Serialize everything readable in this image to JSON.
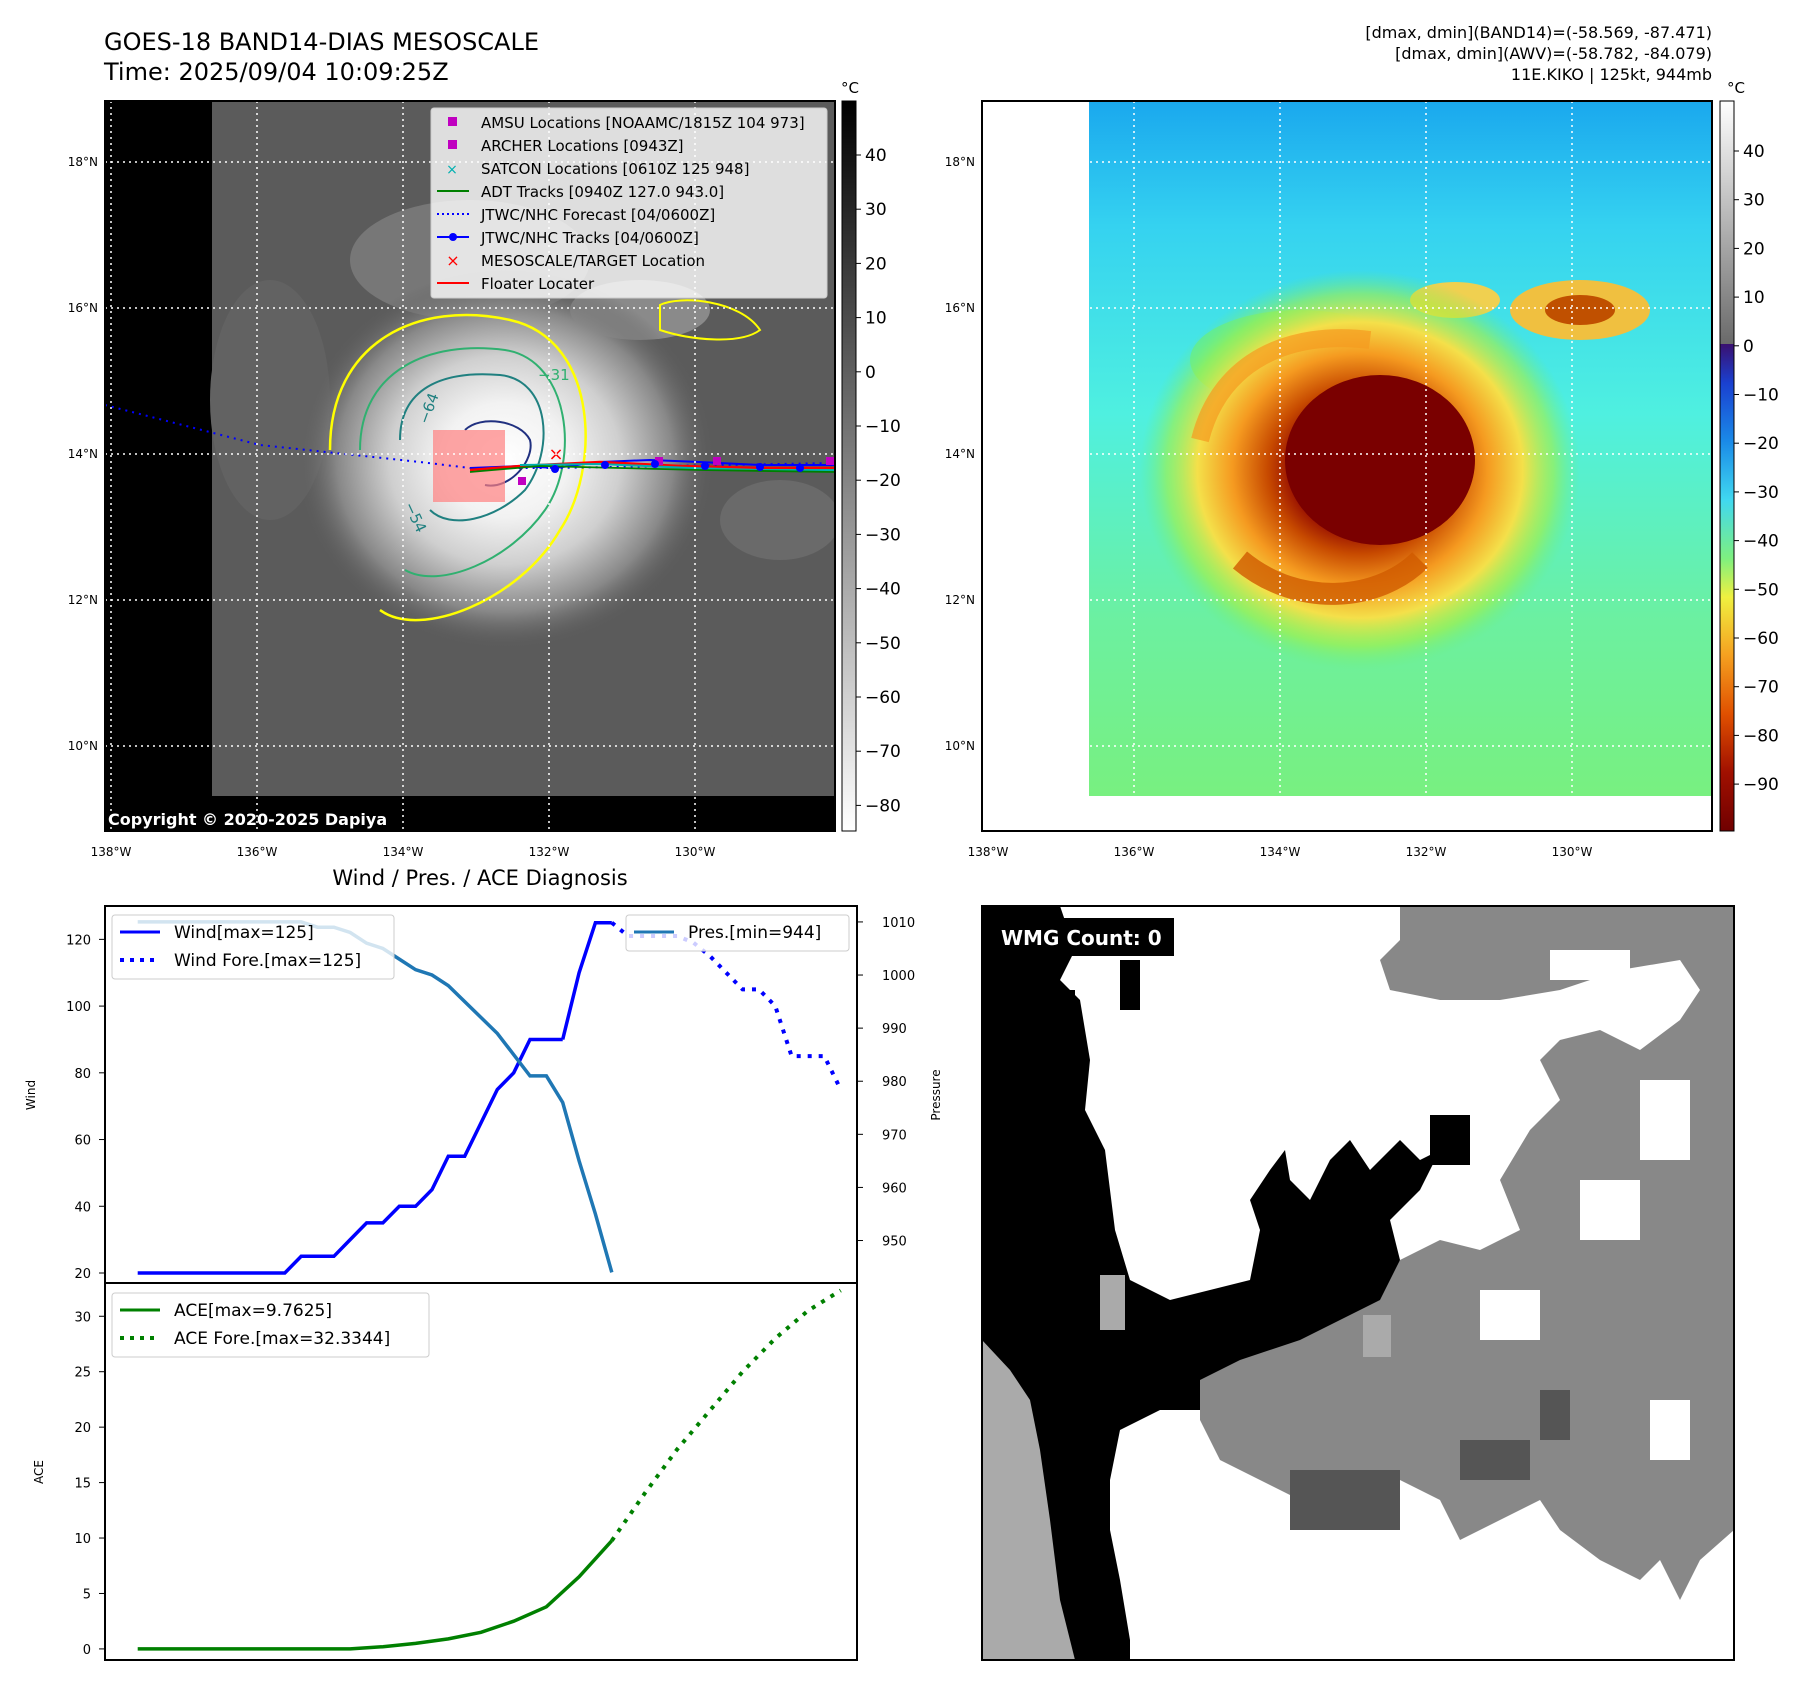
{
  "header": {
    "title_line1": "GOES-18 BAND14-DIAS MESOSCALE",
    "title_line2": "Time: 2025/09/04 10:09:25Z",
    "stats_line1": "[dmax, dmin](BAND14)=(-58.569, -87.471)",
    "stats_line2": "[dmax, dmin](AWV)=(-58.782, -84.079)",
    "stats_line3": "11E.KIKO | 125kt, 944mb"
  },
  "map_axes": {
    "lon_labels": [
      "138°W",
      "136°W",
      "134°W",
      "132°W",
      "130°W"
    ],
    "lat_labels": [
      "18°N",
      "16°N",
      "14°N",
      "12°N",
      "10°N"
    ],
    "unit": "°C"
  },
  "ir_panel": {
    "copyright": "Copyright © 2020-2025 Dapiya",
    "colorbar_ticks": [
      "40",
      "30",
      "20",
      "10",
      "0",
      "−10",
      "−20",
      "−30",
      "−40",
      "−50",
      "−60",
      "−70",
      "−80"
    ],
    "contour_labels": [
      "−64",
      "−54",
      "−31"
    ],
    "legend": [
      {
        "label": "AMSU Locations [NOAAMC/1815Z 104 973]",
        "color": "#c000c0",
        "marker": "square"
      },
      {
        "label": "ARCHER Locations [0943Z]",
        "color": "#c000c0",
        "marker": "square"
      },
      {
        "label": "SATCON Locations [0610Z 125 948]",
        "color": "#00b0b0",
        "marker": "x"
      },
      {
        "label": "ADT Tracks [0940Z 127.0 943.0]",
        "color": "#008000",
        "marker": "line"
      },
      {
        "label": "JTWC/NHC Forecast [04/0600Z]",
        "color": "#0000ff",
        "marker": "dotted"
      },
      {
        "label": "JTWC/NHC Tracks [04/0600Z]",
        "color": "#0000ff",
        "marker": "line-dot"
      },
      {
        "label": "MESOSCALE/TARGET Location",
        "color": "#ff0000",
        "marker": "x"
      },
      {
        "label": "Floater Locater",
        "color": "#ff0000",
        "marker": "line"
      }
    ]
  },
  "color_panel": {
    "colorbar_ticks": [
      "40",
      "30",
      "20",
      "10",
      "0",
      "−10",
      "−20",
      "−30",
      "−40",
      "−50",
      "−60",
      "−70",
      "−80",
      "−90"
    ]
  },
  "diagnosis": {
    "title": "Wind / Pres. / ACE Diagnosis",
    "wind_ylabel": "Wind",
    "pressure_ylabel": "Pressure",
    "ace_ylabel": "ACE",
    "wind_ticks": [
      "20",
      "40",
      "60",
      "80",
      "100",
      "120"
    ],
    "pressure_ticks": [
      "950",
      "960",
      "970",
      "980",
      "990",
      "1000",
      "1010"
    ],
    "ace_ticks": [
      "0",
      "5",
      "10",
      "15",
      "20",
      "25",
      "30"
    ],
    "legend_wind": "Wind[max=125]",
    "legend_wind_fore": "Wind Fore.[max=125]",
    "legend_pres": "Pres.[min=944]",
    "legend_ace": "ACE[max=9.7625]",
    "legend_ace_fore": "ACE Fore.[max=32.3344]"
  },
  "wmg_panel": {
    "label": "WMG Count: 0"
  },
  "chart_data": [
    {
      "type": "line",
      "title": "Wind / Pres. / ACE Diagnosis",
      "ylabel": "Wind",
      "ylim": [
        17,
        130
      ],
      "xlim": [
        -1,
        45
      ],
      "series": [
        {
          "name": "Wind[max=125]",
          "color": "#0000ff",
          "style": "solid",
          "x": [
            1,
            2,
            3,
            4,
            5,
            6,
            7,
            8,
            9,
            10,
            11,
            12,
            13,
            14,
            15,
            16,
            17,
            18,
            19,
            20,
            21,
            22,
            23,
            24,
            25,
            26,
            27
          ],
          "values": [
            20,
            20,
            20,
            20,
            20,
            20,
            20,
            20,
            20,
            20,
            25,
            25,
            25,
            30,
            35,
            35,
            40,
            40,
            45,
            55,
            55,
            65,
            75,
            80,
            90,
            90,
            90
          ]
        },
        {
          "name": "Wind[max=125]",
          "color": "#0000ff",
          "style": "solid",
          "x": [
            27,
            28,
            29,
            30
          ],
          "values": [
            90,
            110,
            125,
            125
          ]
        },
        {
          "name": "Wind Fore.[max=125]",
          "color": "#0000ff",
          "style": "dotted",
          "x": [
            30,
            31,
            32,
            33,
            34,
            35,
            36,
            37,
            38,
            39,
            40,
            41,
            42,
            43,
            44
          ],
          "values": [
            125,
            121,
            121,
            121,
            121,
            119,
            115,
            110,
            105,
            105,
            100,
            85,
            85,
            85,
            75
          ]
        }
      ]
    },
    {
      "type": "line",
      "ylabel": "Pressure",
      "ylim": [
        942,
        1013
      ],
      "xlim": [
        -1,
        45
      ],
      "series": [
        {
          "name": "Pres.[min=944]",
          "color": "#1f77b4",
          "style": "solid",
          "x": [
            1,
            2,
            3,
            4,
            5,
            6,
            7,
            8,
            9,
            10,
            11,
            12,
            13,
            14,
            15,
            16,
            17,
            18,
            19,
            20,
            21,
            22,
            23,
            24,
            25,
            26,
            27,
            28,
            29,
            30
          ],
          "values": [
            1010,
            1010,
            1010,
            1010,
            1010,
            1010,
            1010,
            1010,
            1010,
            1010,
            1010,
            1009,
            1009,
            1008,
            1006,
            1005,
            1003,
            1001,
            1000,
            998,
            995,
            992,
            989,
            985,
            981,
            981,
            976,
            965,
            955,
            944
          ]
        }
      ]
    },
    {
      "type": "line",
      "ylabel": "ACE",
      "ylim": [
        -1,
        33
      ],
      "xlim": [
        -1,
        45
      ],
      "series": [
        {
          "name": "ACE[max=9.7625]",
          "color": "#008000",
          "style": "solid",
          "x": [
            1,
            4,
            8,
            12,
            14,
            16,
            18,
            20,
            22,
            24,
            26,
            28,
            30
          ],
          "values": [
            0,
            0,
            0,
            0,
            0,
            0.2,
            0.5,
            0.9,
            1.5,
            2.5,
            3.8,
            6.5,
            9.76
          ]
        },
        {
          "name": "ACE Fore.[max=32.3344]",
          "color": "#008000",
          "style": "dotted",
          "x": [
            30,
            32,
            34,
            36,
            38,
            40,
            42,
            44
          ],
          "values": [
            9.76,
            14.0,
            18.0,
            21.5,
            25.0,
            28.0,
            30.5,
            32.33
          ]
        }
      ]
    }
  ]
}
